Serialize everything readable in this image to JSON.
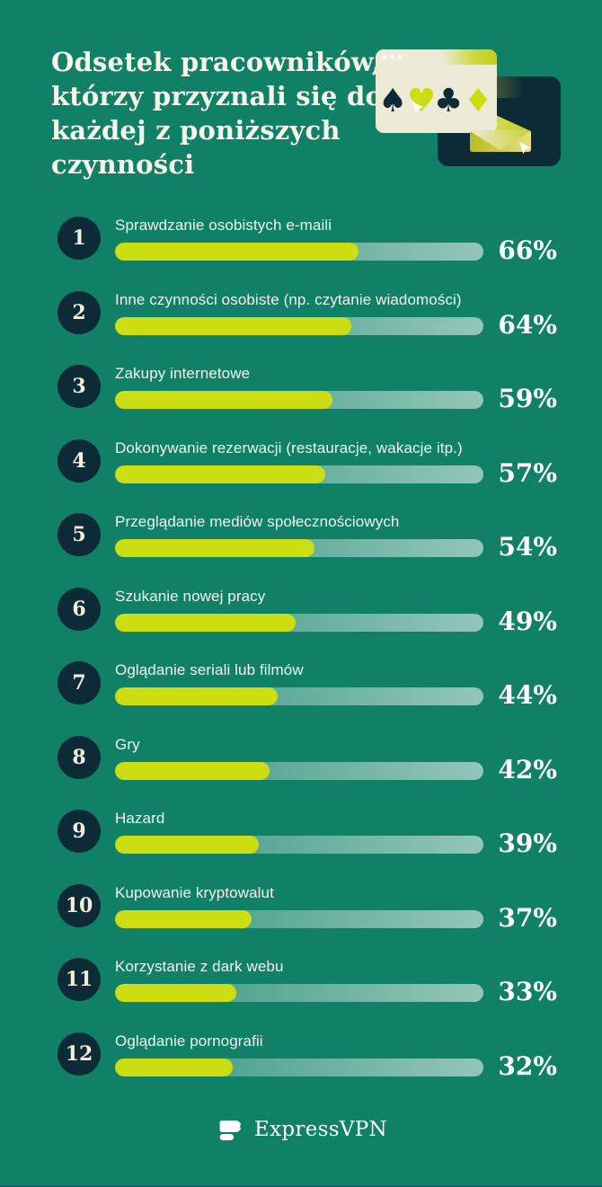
{
  "theme": {
    "background": "#108167",
    "dark_navy": "#0C2B37",
    "lime": "#CCDD12",
    "cream": "#EDEAD6",
    "track_gradient_start": "rgba(255,255,255,0.16)",
    "track_gradient_end": "rgba(255,255,255,0.55)",
    "text_white": "#FFFFFF",
    "bottom_line": "#155D7A"
  },
  "header": {
    "title": "Odsetek pracowników, którzy przyznali się do każdej z poniższych czynności",
    "title_lines": [
      "Odsetek pracowników,",
      "którzy przyznali się do",
      "każdej z poniższych",
      "czynności"
    ],
    "illustration_icons": [
      "browser-window",
      "spade",
      "heart",
      "club",
      "diamond",
      "cursor",
      "dark-window",
      "envelope",
      "cursor"
    ]
  },
  "chart_data": {
    "type": "bar",
    "orientation": "horizontal",
    "title": "Odsetek pracowników, którzy przyznali się do każdej z poniższych czynności",
    "categories": [
      "Sprawdzanie osobistych e-maili",
      "Inne czynności osobiste (np. czytanie wiadomości)",
      "Zakupy internetowe",
      "Dokonywanie rezerwacji (restauracje, wakacje itp.)",
      "Przeglądanie mediów społecznościowych",
      "Szukanie nowej pracy",
      "Oglądanie seriali lub filmów",
      "Gry",
      "Hazard",
      "Kupowanie kryptowalut",
      "Korzystanie z dark webu",
      "Oglądanie pornografii"
    ],
    "values": [
      66,
      64,
      59,
      57,
      54,
      49,
      44,
      42,
      39,
      37,
      33,
      32
    ],
    "unit": "%",
    "xlim": [
      0,
      100
    ],
    "bar_color": "#CCDD12",
    "grid": false,
    "legend": false
  },
  "rows": [
    {
      "rank": "1",
      "label": "Sprawdzanie osobistych e-maili",
      "value": 66,
      "display": "66%"
    },
    {
      "rank": "2",
      "label": "Inne czynności osobiste (np. czytanie wiadomości)",
      "value": 64,
      "display": "64%"
    },
    {
      "rank": "3",
      "label": "Zakupy internetowe",
      "value": 59,
      "display": "59%"
    },
    {
      "rank": "4",
      "label": "Dokonywanie rezerwacji (restauracje, wakacje itp.)",
      "value": 57,
      "display": "57%"
    },
    {
      "rank": "5",
      "label": "Przeglądanie mediów społecznościowych",
      "value": 54,
      "display": "54%"
    },
    {
      "rank": "6",
      "label": "Szukanie nowej pracy",
      "value": 49,
      "display": "49%"
    },
    {
      "rank": "7",
      "label": "Oglądanie seriali lub filmów",
      "value": 44,
      "display": "44%"
    },
    {
      "rank": "8",
      "label": "Gry",
      "value": 42,
      "display": "42%"
    },
    {
      "rank": "9",
      "label": "Hazard",
      "value": 39,
      "display": "39%"
    },
    {
      "rank": "10",
      "label": "Kupowanie kryptowalut",
      "value": 37,
      "display": "37%"
    },
    {
      "rank": "11",
      "label": "Korzystanie z dark webu",
      "value": 33,
      "display": "33%"
    },
    {
      "rank": "12",
      "label": "Oglądanie pornografii",
      "value": 32,
      "display": "32%"
    }
  ],
  "footer": {
    "brand": "ExpressVPN",
    "logo_icon": "expressvpn-logomark"
  }
}
